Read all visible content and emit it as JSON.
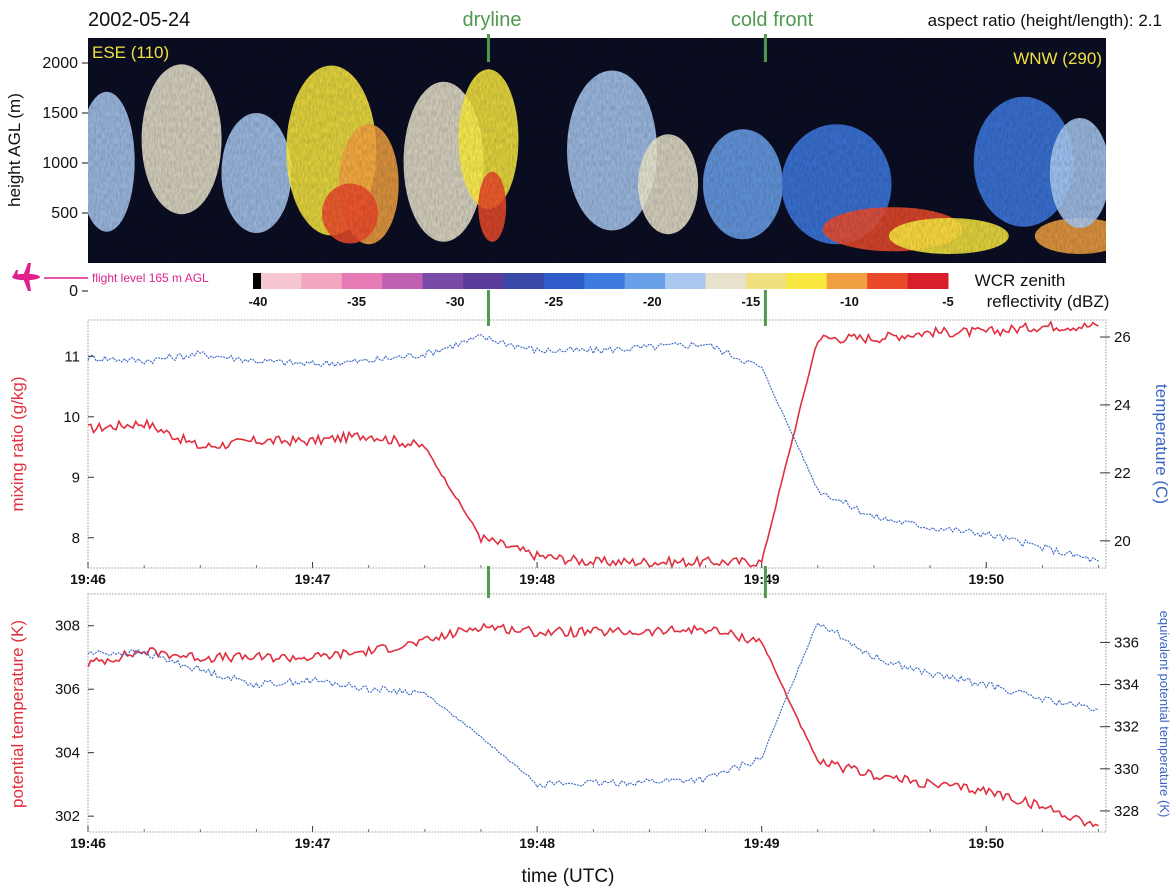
{
  "date": "2002-05-24",
  "aspect_text": "aspect ratio (height/length): 2.1",
  "markers": [
    {
      "label": "dryline",
      "time": "19:47:47"
    },
    {
      "label": "cold front",
      "time": "19:49:01"
    }
  ],
  "colors": {
    "marker": "#4f9a4f",
    "red": "#e03040",
    "blue": "#3a66c4",
    "flight": "#e0208c",
    "direction_text": "#f0e040"
  },
  "radar": {
    "direction_left": "ESE (110)",
    "direction_right": "WNW (290)",
    "ylabel": "height AGL (m)",
    "yticks": [
      2000,
      1500,
      1000,
      500,
      "0"
    ],
    "flight_label": "flight level 165 m AGL",
    "flight_icon": "airplane-icon",
    "colorbar": {
      "ticks": [
        -40,
        -35,
        -30,
        -25,
        -20,
        -15,
        -10,
        -5
      ],
      "label_line1": "WCR zenith",
      "label_line2": "reflectivity (dBZ)",
      "colors": [
        "#f6c6d2",
        "#f2a6c2",
        "#e67ab4",
        "#c060b0",
        "#7a4aa8",
        "#5a3c9a",
        "#3a48a8",
        "#2e5cc8",
        "#3e7ae0",
        "#6aa0ea",
        "#a8c8f0",
        "#e8e2cc",
        "#f0e080",
        "#f8e840",
        "#f0a040",
        "#e84a2a",
        "#d81e2a"
      ]
    },
    "time_range": [
      "19:46:00",
      "19:50:32"
    ]
  },
  "chart_data": [
    {
      "type": "line",
      "title": "",
      "x": [
        "19:46:00",
        "19:46:15",
        "19:46:30",
        "19:46:45",
        "19:47:00",
        "19:47:15",
        "19:47:30",
        "19:47:45",
        "19:48:00",
        "19:48:15",
        "19:48:30",
        "19:48:45",
        "19:49:00",
        "19:49:15",
        "19:49:30",
        "19:49:45",
        "19:50:00",
        "19:50:15",
        "19:50:30"
      ],
      "xticks": [
        "19:46",
        "19:47",
        "19:48",
        "19:49",
        "19:50"
      ],
      "xlim": [
        "19:46:00",
        "19:50:32"
      ],
      "series": [
        {
          "name": "mixing ratio",
          "axis": "left",
          "color": "#e03040",
          "values": [
            9.8,
            9.9,
            9.5,
            9.6,
            9.6,
            9.7,
            9.5,
            8.0,
            7.7,
            7.6,
            7.6,
            7.6,
            7.6,
            11.3,
            11.3,
            11.4,
            11.4,
            11.5,
            11.5
          ]
        },
        {
          "name": "temperature",
          "axis": "right",
          "color": "#3a66c4",
          "values": [
            25.4,
            25.3,
            25.5,
            25.3,
            25.2,
            25.3,
            25.5,
            26.0,
            25.6,
            25.6,
            25.7,
            25.8,
            25.1,
            21.5,
            20.7,
            20.4,
            20.2,
            19.8,
            19.4
          ]
        }
      ],
      "ylabel_left": "mixing ratio (g/kg)",
      "ylim_left": [
        7.5,
        11.6
      ],
      "yticks_left": [
        8,
        9,
        10,
        11
      ],
      "ylabel_right": "temperature (C)",
      "ylim_right": [
        19.2,
        26.5
      ],
      "yticks_right": [
        20,
        22,
        24,
        26
      ]
    },
    {
      "type": "line",
      "title": "",
      "x": [
        "19:46:00",
        "19:46:15",
        "19:46:30",
        "19:46:45",
        "19:47:00",
        "19:47:15",
        "19:47:30",
        "19:47:45",
        "19:48:00",
        "19:48:15",
        "19:48:30",
        "19:48:45",
        "19:49:00",
        "19:49:15",
        "19:49:30",
        "19:49:45",
        "19:50:00",
        "19:50:15",
        "19:50:30"
      ],
      "xticks": [
        "19:46",
        "19:47",
        "19:48",
        "19:49",
        "19:50"
      ],
      "xlim": [
        "19:46:00",
        "19:50:32"
      ],
      "xlabel": "time (UTC)",
      "series": [
        {
          "name": "potential temperature",
          "axis": "left",
          "color": "#e03040",
          "values": [
            306.8,
            307.2,
            307.0,
            307.0,
            307.0,
            307.2,
            307.5,
            308.0,
            307.8,
            307.8,
            307.8,
            307.9,
            307.5,
            303.7,
            303.3,
            303.0,
            302.8,
            302.3,
            301.7
          ]
        },
        {
          "name": "equivalent potential temperature",
          "axis": "right",
          "color": "#3a66c4",
          "values": [
            335.5,
            335.5,
            334.7,
            334.0,
            334.2,
            333.8,
            333.6,
            331.5,
            329.3,
            329.3,
            329.4,
            329.5,
            330.5,
            337.0,
            335.3,
            334.5,
            334.0,
            333.3,
            332.8
          ]
        }
      ],
      "ylabel_left": "potential temperature (K)",
      "ylim_left": [
        301.5,
        309
      ],
      "yticks_left": [
        302,
        304,
        306,
        308
      ],
      "ylabel_right": "equivalent potential temperature (K)",
      "ylim_right": [
        327,
        338.3
      ],
      "yticks_right": [
        328,
        330,
        332,
        334,
        336
      ]
    }
  ]
}
